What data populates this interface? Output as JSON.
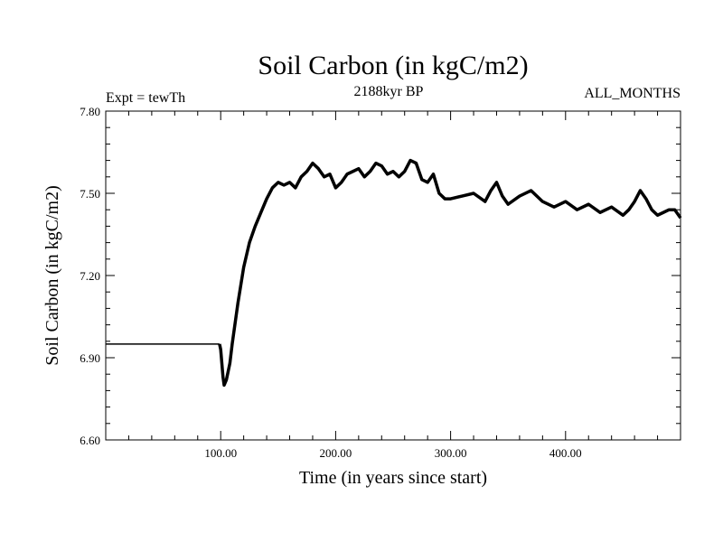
{
  "chart_data": {
    "type": "line",
    "title": "Soil Carbon (in kgC/m2)",
    "subtitle": "2188kyr BP",
    "left_label": "Expt = tewTh",
    "right_label": "ALL_MONTHS",
    "xlabel": "Time (in years since start)",
    "ylabel": "Soil Carbon (in kgC/m2)",
    "xlim": [
      0,
      500
    ],
    "ylim": [
      6.6,
      7.8
    ],
    "x_ticks": [
      100,
      200,
      300,
      400
    ],
    "x_tick_labels": [
      "100.00",
      "200.00",
      "300.00",
      "400.00"
    ],
    "y_ticks": [
      6.6,
      6.9,
      7.2,
      7.5,
      7.8
    ],
    "y_tick_labels": [
      "6.60",
      "6.90",
      "7.20",
      "7.50",
      "7.80"
    ],
    "series": [
      {
        "name": "Soil Carbon",
        "x": [
          0,
          99,
          100,
          101,
          102,
          103,
          105,
          108,
          110,
          115,
          120,
          125,
          130,
          135,
          140,
          145,
          150,
          155,
          160,
          165,
          170,
          175,
          180,
          185,
          190,
          195,
          200,
          205,
          210,
          215,
          220,
          225,
          230,
          235,
          240,
          245,
          250,
          255,
          260,
          265,
          270,
          275,
          280,
          285,
          290,
          295,
          300,
          310,
          320,
          330,
          335,
          340,
          345,
          350,
          360,
          370,
          380,
          390,
          400,
          410,
          420,
          430,
          440,
          450,
          455,
          460,
          465,
          470,
          475,
          480,
          485,
          490,
          495,
          500
        ],
        "values": [
          6.95,
          6.95,
          6.93,
          6.88,
          6.83,
          6.8,
          6.82,
          6.88,
          6.95,
          7.1,
          7.23,
          7.32,
          7.38,
          7.43,
          7.48,
          7.52,
          7.54,
          7.53,
          7.54,
          7.52,
          7.56,
          7.58,
          7.61,
          7.59,
          7.56,
          7.57,
          7.52,
          7.54,
          7.57,
          7.58,
          7.59,
          7.56,
          7.58,
          7.61,
          7.6,
          7.57,
          7.58,
          7.56,
          7.58,
          7.62,
          7.61,
          7.55,
          7.54,
          7.57,
          7.5,
          7.48,
          7.48,
          7.49,
          7.5,
          7.47,
          7.51,
          7.54,
          7.49,
          7.46,
          7.49,
          7.51,
          7.47,
          7.45,
          7.47,
          7.44,
          7.46,
          7.43,
          7.45,
          7.42,
          7.44,
          7.47,
          7.51,
          7.48,
          7.44,
          7.42,
          7.43,
          7.44,
          7.44,
          7.41
        ]
      }
    ]
  }
}
